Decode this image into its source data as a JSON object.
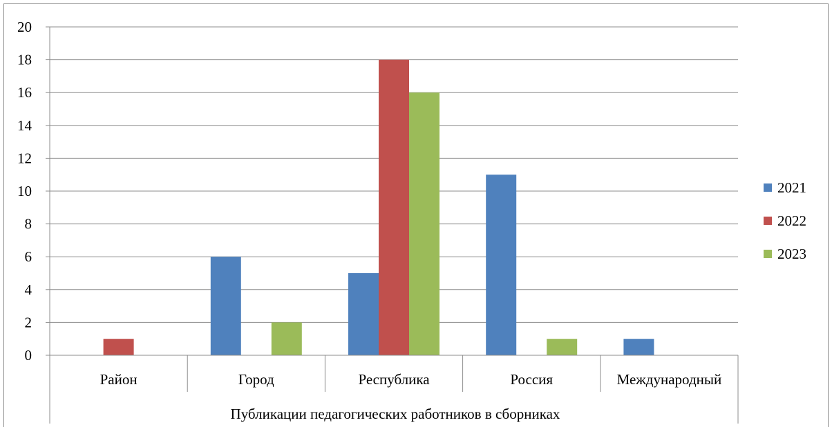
{
  "chart_data": {
    "type": "bar",
    "group_label": "Публикации педагогических работников  в сборниках",
    "categories": [
      "Район",
      "Город",
      "Республика",
      "Россия",
      "Международный"
    ],
    "series": [
      {
        "name": "2021",
        "color": "#4F81BD",
        "values": [
          0,
          6,
          5,
          11,
          1
        ]
      },
      {
        "name": "2022",
        "color": "#C0504D",
        "values": [
          1,
          0,
          18,
          0,
          0
        ]
      },
      {
        "name": "2023",
        "color": "#9BBB59",
        "values": [
          0,
          2,
          16,
          1,
          0
        ]
      }
    ],
    "ylim": [
      0,
      20
    ],
    "yticks": [
      "0",
      "2",
      "4",
      "6",
      "8",
      "10",
      "12",
      "14",
      "16",
      "18",
      "20"
    ],
    "grid": true,
    "legend_position": "right"
  }
}
